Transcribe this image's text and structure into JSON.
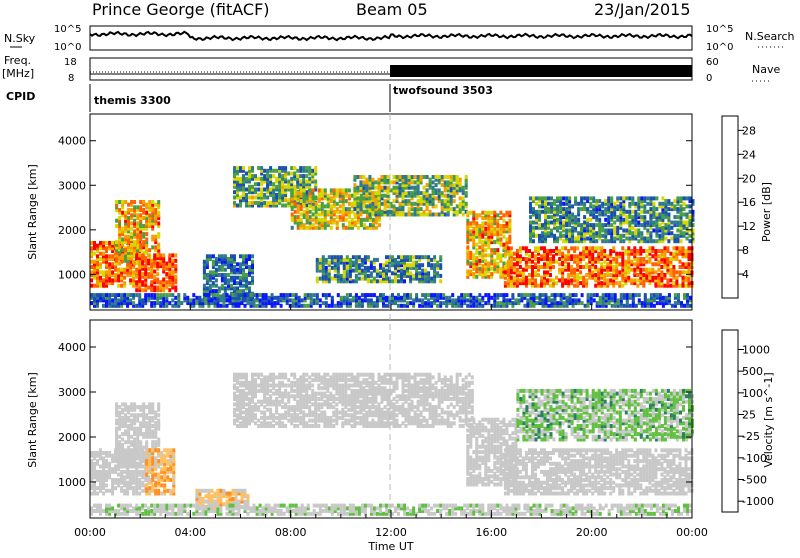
{
  "header": {
    "station": "Prince George (fitACF)",
    "beam": "Beam 05",
    "date": "23/Jan/2015"
  },
  "noise_panel": {
    "left_label": "N.Sky",
    "right_label": "N.Search",
    "left_ticks": [
      "10^5",
      "10^0"
    ],
    "right_ticks": [
      "10^5",
      "10^0"
    ]
  },
  "freq_panel": {
    "left_label_1": "Freq.",
    "left_label_2": "[MHz]",
    "right_label": "Nave",
    "left_ticks": [
      "18",
      "8"
    ],
    "right_ticks": [
      "60",
      "0"
    ]
  },
  "cpid": {
    "label": "CPID",
    "programs": [
      {
        "name": "themis 3300",
        "start_hour": 0
      },
      {
        "name": "twofsound 3503",
        "start_hour": 12
      }
    ]
  },
  "time_axis": {
    "label": "Time UT",
    "ticks": [
      "00:00",
      "04:00",
      "08:00",
      "12:00",
      "16:00",
      "20:00",
      "00:00"
    ]
  },
  "chart_data": [
    {
      "type": "heatmap",
      "title": "",
      "ylabel": "Slant Range [km]",
      "xlabel": "",
      "xlim_hours": [
        0,
        24
      ],
      "ylim": [
        200,
        4600
      ],
      "y_ticks": [
        1000,
        2000,
        3000,
        4000
      ],
      "colorbar": {
        "label": "Power [dB]",
        "ticks": [
          "4",
          "8",
          "12",
          "16",
          "20",
          "24",
          "28"
        ],
        "range": [
          0,
          30
        ],
        "colors": [
          "#0a14ff",
          "#1a50b0",
          "#2e7a8c",
          "#4aa040",
          "#d8d800",
          "#f5a000",
          "#ff6000",
          "#ff0000"
        ]
      },
      "regions": [
        {
          "t0": 0.0,
          "t1": 2.0,
          "r0": 700,
          "r1": 1700,
          "value": 24
        },
        {
          "t0": 1.0,
          "t1": 2.8,
          "r0": 1200,
          "r1": 2600,
          "value": 20
        },
        {
          "t0": 1.8,
          "t1": 3.4,
          "r0": 600,
          "r1": 1400,
          "value": 26
        },
        {
          "t0": 5.7,
          "t1": 9.0,
          "r0": 2500,
          "r1": 3400,
          "value": 12
        },
        {
          "t0": 8.0,
          "t1": 11.5,
          "r0": 2000,
          "r1": 2900,
          "value": 18
        },
        {
          "t0": 10.5,
          "t1": 15.0,
          "r0": 2300,
          "r1": 3200,
          "value": 14
        },
        {
          "t0": 15.0,
          "t1": 16.8,
          "r0": 900,
          "r1": 2400,
          "value": 20
        },
        {
          "t0": 16.5,
          "t1": 24.0,
          "r0": 700,
          "r1": 1600,
          "value": 24
        },
        {
          "t0": 17.5,
          "t1": 24.0,
          "r0": 1700,
          "r1": 2700,
          "value": 10
        },
        {
          "t0": 4.5,
          "t1": 6.5,
          "r0": 400,
          "r1": 1400,
          "value": 8
        },
        {
          "t0": 9.0,
          "t1": 14.0,
          "r0": 800,
          "r1": 1400,
          "value": 10
        },
        {
          "t0": 0.0,
          "t1": 24.0,
          "r0": 250,
          "r1": 500,
          "value": 6
        }
      ]
    },
    {
      "type": "heatmap",
      "title": "",
      "ylabel": "Slant Range [km]",
      "xlabel": "Time UT",
      "xlim_hours": [
        0,
        24
      ],
      "ylim": [
        200,
        4600
      ],
      "y_ticks": [
        1000,
        2000,
        3000,
        4000
      ],
      "colorbar": {
        "label": "Velocity [m s^-1]",
        "ticks": [
          "1000",
          "500",
          "100",
          "25",
          "-25",
          "-100",
          "-500",
          "-1000"
        ],
        "range": [
          -1200,
          1200
        ],
        "colors": [
          "#ff0000",
          "#ff5000",
          "#ff9020",
          "#ffc060",
          "#c8c8c8",
          "#c8c8c8",
          "#60c040",
          "#2a8060",
          "#1a5090",
          "#1030c0"
        ]
      },
      "regions": [
        {
          "t0": 0.0,
          "t1": 2.5,
          "r0": 700,
          "r1": 1700,
          "value": 0
        },
        {
          "t0": 1.0,
          "t1": 2.8,
          "r0": 1300,
          "r1": 2700,
          "value": 0
        },
        {
          "t0": 2.2,
          "t1": 3.3,
          "r0": 700,
          "r1": 1700,
          "value": -400
        },
        {
          "t0": 4.2,
          "t1": 6.3,
          "r0": 400,
          "r1": 800,
          "value": -300
        },
        {
          "t0": 5.7,
          "t1": 15.2,
          "r0": 2200,
          "r1": 3400,
          "value": 0
        },
        {
          "t0": 15.0,
          "t1": 17.0,
          "r0": 900,
          "r1": 2400,
          "value": 0
        },
        {
          "t0": 16.5,
          "t1": 24.0,
          "r0": 700,
          "r1": 1700,
          "value": 0
        },
        {
          "t0": 17.0,
          "t1": 24.0,
          "r0": 1900,
          "r1": 3000,
          "value": 300
        },
        {
          "t0": 0.0,
          "t1": 24.0,
          "r0": 250,
          "r1": 450,
          "value": 120
        }
      ]
    }
  ]
}
